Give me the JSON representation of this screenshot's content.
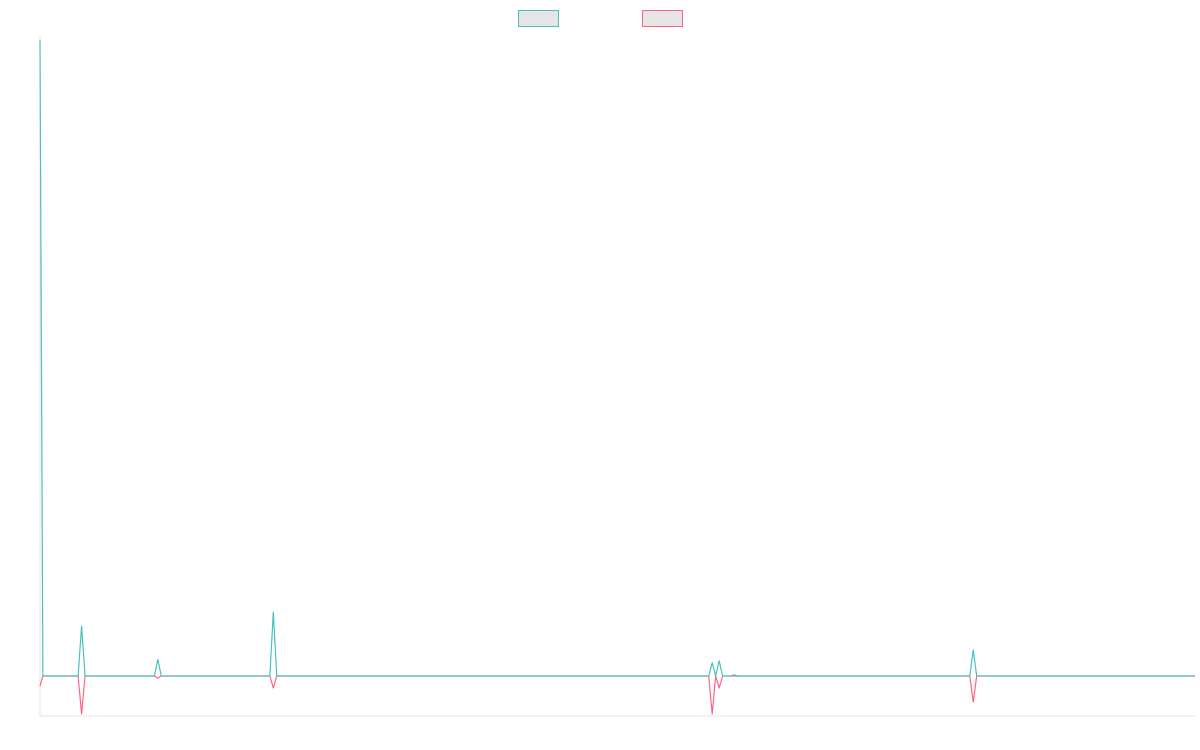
{
  "chart_data": {
    "type": "line",
    "title": "",
    "xlabel": "",
    "ylabel": "",
    "x_range": [
      0,
      1000
    ],
    "ylim": [
      -1.0,
      16.0
    ],
    "grid": false,
    "legend_position": "top-center",
    "series": [
      {
        "color": "#4bc0c0",
        "fill": "#e5e5e5",
        "points": [
          [
            0,
            15.9
          ],
          [
            2.5,
            0
          ],
          [
            33,
            0
          ],
          [
            36,
            1.25
          ],
          [
            39,
            0
          ],
          [
            99,
            0
          ],
          [
            102,
            0.42
          ],
          [
            105,
            0
          ],
          [
            199,
            0
          ],
          [
            202,
            1.6
          ],
          [
            205,
            0
          ],
          [
            579,
            0
          ],
          [
            582,
            0.33
          ],
          [
            585,
            0
          ],
          [
            588,
            0.38
          ],
          [
            591,
            0
          ],
          [
            598,
            0
          ],
          [
            601,
            0.03
          ],
          [
            604,
            0
          ],
          [
            805,
            0
          ],
          [
            808,
            0.65
          ],
          [
            811,
            0
          ],
          [
            1000,
            0
          ]
        ]
      },
      {
        "color": "#ff6384",
        "fill": "#e5e5e5",
        "points": [
          [
            0,
            -0.25
          ],
          [
            2.5,
            0
          ],
          [
            33,
            0
          ],
          [
            36,
            -0.95
          ],
          [
            39,
            0
          ],
          [
            99,
            0
          ],
          [
            102,
            -0.05
          ],
          [
            105,
            0
          ],
          [
            199,
            0
          ],
          [
            202,
            -0.3
          ],
          [
            205,
            0
          ],
          [
            579,
            0
          ],
          [
            582,
            -0.95
          ],
          [
            585,
            0
          ],
          [
            588,
            -0.3
          ],
          [
            591,
            0
          ],
          [
            805,
            0
          ],
          [
            808,
            -0.65
          ],
          [
            811,
            0
          ],
          [
            1000,
            0
          ]
        ]
      }
    ]
  }
}
